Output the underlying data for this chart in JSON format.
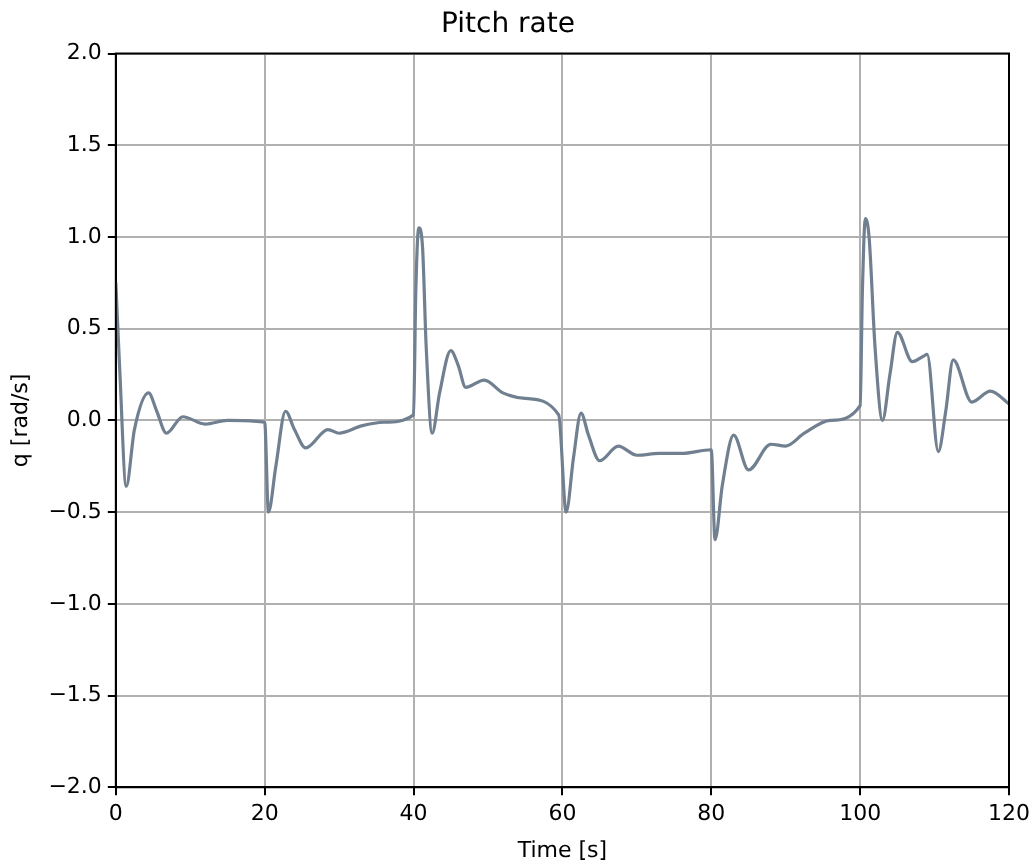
{
  "chart_data": {
    "type": "line",
    "title": "Pitch rate",
    "xlabel": "Time [s]",
    "ylabel": "q [rad/s]",
    "x": [
      0,
      0.5,
      1.4,
      2.5,
      4.4,
      5.5,
      6.8,
      9,
      12,
      15,
      20,
      20.5,
      21.5,
      22.8,
      24,
      25.5,
      28.5,
      30,
      33,
      36,
      40,
      40.3,
      40.7,
      41.2,
      41.7,
      42.5,
      43.5,
      45,
      46,
      47,
      49.5,
      52,
      55,
      59.5,
      60.5,
      61.5,
      62.5,
      63.5,
      65,
      67.5,
      70,
      73,
      76,
      80,
      80.5,
      81.5,
      83,
      85,
      88,
      90,
      92.5,
      96,
      100,
      100.3,
      100.7,
      101.2,
      102,
      103,
      104,
      105,
      107,
      108.5,
      109,
      110.5,
      111.5,
      112.5,
      115,
      117.5,
      120
    ],
    "series": [
      {
        "color": "#708090",
        "values": [
          0.75,
          0.3,
          -0.36,
          -0.05,
          0.15,
          0.05,
          -0.07,
          0.02,
          -0.02,
          0,
          -0.01,
          -0.5,
          -0.25,
          0.05,
          -0.05,
          -0.15,
          -0.05,
          -0.07,
          -0.03,
          -0.01,
          0.03,
          0.7,
          1.05,
          0.95,
          0.4,
          -0.07,
          0.15,
          0.38,
          0.3,
          0.18,
          0.22,
          0.15,
          0.12,
          0.03,
          -0.5,
          -0.2,
          0.04,
          -0.08,
          -0.22,
          -0.14,
          -0.19,
          -0.18,
          -0.18,
          -0.16,
          -0.65,
          -0.35,
          -0.08,
          -0.27,
          -0.13,
          -0.14,
          -0.07,
          0,
          0.08,
          0.7,
          1.1,
          1.0,
          0.4,
          0,
          0.25,
          0.48,
          0.32,
          0.35,
          0.36,
          -0.17,
          0.05,
          0.33,
          0.1,
          0.16,
          0.09
        ]
      }
    ],
    "xlim": [
      0,
      120
    ],
    "xticks": [
      0,
      20,
      40,
      60,
      80,
      100,
      120
    ],
    "ylim": [
      -2,
      2
    ],
    "yticks": [
      {
        "value": -2,
        "label": "−2.0"
      },
      {
        "value": -1.5,
        "label": "−1.5"
      },
      {
        "value": -1,
        "label": "−1.0"
      },
      {
        "value": -0.5,
        "label": "−0.5"
      },
      {
        "value": 0,
        "label": "0.0"
      },
      {
        "value": 0.5,
        "label": "0.5"
      },
      {
        "value": 1,
        "label": "1.0"
      },
      {
        "value": 1.5,
        "label": "1.5"
      },
      {
        "value": 2,
        "label": "2.0"
      }
    ],
    "grid": true,
    "legend": false,
    "marker": "none",
    "line_style": "solid"
  }
}
